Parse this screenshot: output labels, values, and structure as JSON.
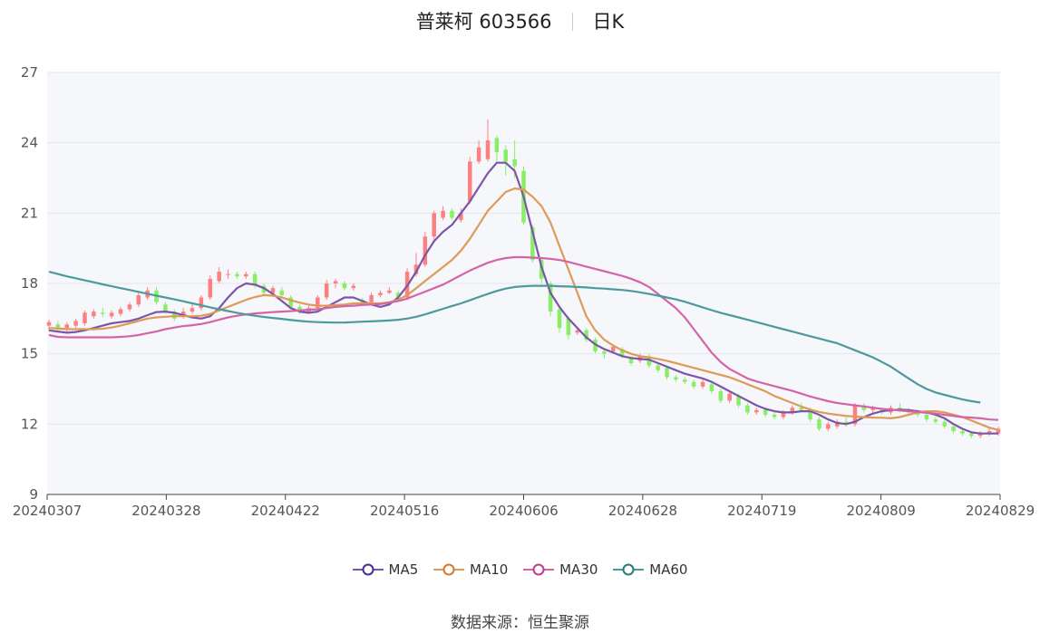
{
  "title": {
    "stock": "普莱柯 603566",
    "period": "日K"
  },
  "source": {
    "label": "数据来源：",
    "value": "恒生聚源"
  },
  "colors": {
    "up": "#fd8080",
    "down": "#88ee66",
    "MA5": "#7b56a8",
    "MA10": "#dd9b57",
    "MA30": "#d464a8",
    "MA60": "#4c9a9e",
    "plotBg": "#f6f7fb",
    "grid": "#e3e6ee"
  },
  "chart_data": {
    "type": "candlestick",
    "title": "普莱柯 603566 日K",
    "ylim": [
      9,
      27
    ],
    "yticks": [
      9,
      12,
      15,
      18,
      21,
      24,
      27
    ],
    "x_ticks": [
      "20240307",
      "20240328",
      "20240422",
      "20240516",
      "20240606",
      "20240628",
      "20240719",
      "20240809",
      "20240829"
    ],
    "legend": [
      "MA5",
      "MA10",
      "MA30",
      "MA60"
    ],
    "legend_position": "bottom",
    "grid": true,
    "candles": [
      [
        16.2,
        16.35,
        16.45,
        16.0
      ],
      [
        16.25,
        16.1,
        16.4,
        16.0
      ],
      [
        16.1,
        16.25,
        16.35,
        15.95
      ],
      [
        16.2,
        16.4,
        16.5,
        16.1
      ],
      [
        16.3,
        16.75,
        16.85,
        16.2
      ],
      [
        16.6,
        16.8,
        16.9,
        16.5
      ],
      [
        16.75,
        16.7,
        16.95,
        16.55
      ],
      [
        16.6,
        16.75,
        16.85,
        16.5
      ],
      [
        16.7,
        16.9,
        17.0,
        16.6
      ],
      [
        16.9,
        17.1,
        17.2,
        16.8
      ],
      [
        17.1,
        17.5,
        17.6,
        17.0
      ],
      [
        17.4,
        17.7,
        17.85,
        17.3
      ],
      [
        17.7,
        17.2,
        17.85,
        17.1
      ],
      [
        17.1,
        16.8,
        17.2,
        16.7
      ],
      [
        16.8,
        16.5,
        16.9,
        16.4
      ],
      [
        16.6,
        16.8,
        16.95,
        16.5
      ],
      [
        16.8,
        16.95,
        17.1,
        16.7
      ],
      [
        16.95,
        17.4,
        17.5,
        16.85
      ],
      [
        17.4,
        18.2,
        18.35,
        17.3
      ],
      [
        18.1,
        18.5,
        18.7,
        18.0
      ],
      [
        18.4,
        18.4,
        18.6,
        18.2
      ],
      [
        18.4,
        18.3,
        18.5,
        18.2
      ],
      [
        18.3,
        18.4,
        18.5,
        18.2
      ],
      [
        18.4,
        17.9,
        18.5,
        17.8
      ],
      [
        17.9,
        17.6,
        18.0,
        17.5
      ],
      [
        17.6,
        17.8,
        17.9,
        17.5
      ],
      [
        17.7,
        17.5,
        17.85,
        17.4
      ],
      [
        17.4,
        17.0,
        17.5,
        16.9
      ],
      [
        17.0,
        16.8,
        17.1,
        16.7
      ],
      [
        16.8,
        16.95,
        17.05,
        16.7
      ],
      [
        16.95,
        17.4,
        17.5,
        16.9
      ],
      [
        17.4,
        18.0,
        18.15,
        17.3
      ],
      [
        18.0,
        18.1,
        18.2,
        17.8
      ],
      [
        18.0,
        17.8,
        18.1,
        17.7
      ],
      [
        17.8,
        17.9,
        18.0,
        17.7
      ],
      [
        17.3,
        17.2,
        17.4,
        17.1
      ],
      [
        17.2,
        17.5,
        17.6,
        17.1
      ],
      [
        17.5,
        17.6,
        17.7,
        17.4
      ],
      [
        17.6,
        17.7,
        17.85,
        17.55
      ],
      [
        17.6,
        17.4,
        17.7,
        17.3
      ],
      [
        17.4,
        18.5,
        18.65,
        17.3
      ],
      [
        18.4,
        18.8,
        19.3,
        18.3
      ],
      [
        18.8,
        20.0,
        20.2,
        18.7
      ],
      [
        20.0,
        21.0,
        21.1,
        19.8
      ],
      [
        20.8,
        21.1,
        21.3,
        20.7
      ],
      [
        21.1,
        20.8,
        21.2,
        20.7
      ],
      [
        20.7,
        21.0,
        21.2,
        20.6
      ],
      [
        21.5,
        23.2,
        23.4,
        21.4
      ],
      [
        23.2,
        23.8,
        24.1,
        23.1
      ],
      [
        23.3,
        24.1,
        25.0,
        23.2
      ],
      [
        24.2,
        23.6,
        24.3,
        23.2
      ],
      [
        23.7,
        23.2,
        23.9,
        22.6
      ],
      [
        23.3,
        23.0,
        24.1,
        22.5
      ],
      [
        22.8,
        20.6,
        23.0,
        20.5
      ],
      [
        20.4,
        19.0,
        20.5,
        18.9
      ],
      [
        19.0,
        18.2,
        19.1,
        18.0
      ],
      [
        18.0,
        16.8,
        18.1,
        16.6
      ],
      [
        16.9,
        16.1,
        17.0,
        15.9
      ],
      [
        16.5,
        15.8,
        16.6,
        15.6
      ],
      [
        15.9,
        16.0,
        16.1,
        15.8
      ],
      [
        16.0,
        15.6,
        16.1,
        15.5
      ],
      [
        15.6,
        15.1,
        15.7,
        15.0
      ],
      [
        15.1,
        15.0,
        15.2,
        14.8
      ],
      [
        15.1,
        15.3,
        15.4,
        15.0
      ],
      [
        15.2,
        14.9,
        15.3,
        14.8
      ],
      [
        14.8,
        14.6,
        14.9,
        14.5
      ],
      [
        14.7,
        14.9,
        15.0,
        14.6
      ],
      [
        14.9,
        14.5,
        15.0,
        14.4
      ],
      [
        14.5,
        14.3,
        14.6,
        14.2
      ],
      [
        14.4,
        14.0,
        14.5,
        13.9
      ],
      [
        14.0,
        13.9,
        14.1,
        13.8
      ],
      [
        13.9,
        13.8,
        14.0,
        13.7
      ],
      [
        13.8,
        13.6,
        13.9,
        13.5
      ],
      [
        13.6,
        13.8,
        13.9,
        13.5
      ],
      [
        13.7,
        13.4,
        13.8,
        13.3
      ],
      [
        13.4,
        13.0,
        13.5,
        12.9
      ],
      [
        13.0,
        13.3,
        13.4,
        12.9
      ],
      [
        13.2,
        12.8,
        13.3,
        12.7
      ],
      [
        12.8,
        12.5,
        12.9,
        12.4
      ],
      [
        12.5,
        12.6,
        12.7,
        12.4
      ],
      [
        12.6,
        12.4,
        12.7,
        12.3
      ],
      [
        12.4,
        12.3,
        12.5,
        12.2
      ],
      [
        12.3,
        12.5,
        12.6,
        12.2
      ],
      [
        12.5,
        12.7,
        12.8,
        12.4
      ],
      [
        12.7,
        12.6,
        12.9,
        12.5
      ],
      [
        12.6,
        12.2,
        12.7,
        12.1
      ],
      [
        12.2,
        11.8,
        12.3,
        11.7
      ],
      [
        11.8,
        12.0,
        12.1,
        11.7
      ],
      [
        11.9,
        12.1,
        12.2,
        11.8
      ],
      [
        12.1,
        12.0,
        12.3,
        11.9
      ],
      [
        12.0,
        12.8,
        12.9,
        11.9
      ],
      [
        12.8,
        12.6,
        12.9,
        12.5
      ],
      [
        12.6,
        12.7,
        12.8,
        12.5
      ],
      [
        12.6,
        12.5,
        12.7,
        12.4
      ],
      [
        12.5,
        12.7,
        12.8,
        12.4
      ],
      [
        12.7,
        12.6,
        12.9,
        12.5
      ],
      [
        12.6,
        12.5,
        12.7,
        12.4
      ],
      [
        12.5,
        12.4,
        12.6,
        12.3
      ],
      [
        12.4,
        12.2,
        12.5,
        12.1
      ],
      [
        12.2,
        12.1,
        12.3,
        12.0
      ],
      [
        12.1,
        11.9,
        12.2,
        11.8
      ],
      [
        11.9,
        11.7,
        12.0,
        11.6
      ],
      [
        11.7,
        11.6,
        11.8,
        11.5
      ],
      [
        11.6,
        11.5,
        11.7,
        11.4
      ],
      [
        11.5,
        11.6,
        11.7,
        11.4
      ],
      [
        11.6,
        11.7,
        11.8,
        11.5
      ],
      [
        11.6,
        11.8,
        11.9,
        11.5
      ]
    ],
    "series": [
      {
        "name": "MA5",
        "values": [
          16.0,
          15.95,
          15.9,
          15.93,
          16.0,
          16.1,
          16.2,
          16.3,
          16.35,
          16.4,
          16.5,
          16.65,
          16.78,
          16.8,
          16.75,
          16.65,
          16.55,
          16.5,
          16.6,
          16.95,
          17.4,
          17.8,
          18.0,
          17.95,
          17.8,
          17.55,
          17.25,
          16.95,
          16.8,
          16.75,
          16.8,
          17.0,
          17.2,
          17.4,
          17.4,
          17.25,
          17.1,
          17.0,
          17.1,
          17.4,
          17.9,
          18.5,
          19.2,
          19.8,
          20.2,
          20.5,
          21.0,
          21.5,
          22.1,
          22.7,
          23.15,
          23.15,
          22.8,
          21.7,
          20.2,
          18.7,
          17.6,
          17.0,
          16.5,
          16.1,
          15.7,
          15.4,
          15.2,
          15.05,
          14.9,
          14.82,
          14.78,
          14.75,
          14.6,
          14.45,
          14.3,
          14.15,
          14.05,
          13.95,
          13.8,
          13.6,
          13.4,
          13.2,
          13.0,
          12.8,
          12.65,
          12.55,
          12.5,
          12.5,
          12.55,
          12.55,
          12.4,
          12.2,
          12.05,
          12.0,
          12.1,
          12.3,
          12.45,
          12.55,
          12.6,
          12.62,
          12.6,
          12.55,
          12.5,
          12.4,
          12.25,
          12.0,
          11.8,
          11.65,
          11.6,
          11.6,
          11.6
        ]
      },
      {
        "name": "MA10",
        "values": [
          16.1,
          16.08,
          16.05,
          16.05,
          16.05,
          16.05,
          16.07,
          16.12,
          16.2,
          16.3,
          16.4,
          16.5,
          16.55,
          16.58,
          16.6,
          16.6,
          16.6,
          16.62,
          16.7,
          16.85,
          17.0,
          17.15,
          17.3,
          17.42,
          17.5,
          17.48,
          17.4,
          17.28,
          17.18,
          17.1,
          17.05,
          17.05,
          17.08,
          17.1,
          17.15,
          17.15,
          17.15,
          17.15,
          17.2,
          17.3,
          17.5,
          17.8,
          18.1,
          18.4,
          18.7,
          19.0,
          19.4,
          19.9,
          20.5,
          21.1,
          21.5,
          21.9,
          22.05,
          22.0,
          21.7,
          21.3,
          20.6,
          19.6,
          18.6,
          17.6,
          16.6,
          16.0,
          15.6,
          15.35,
          15.15,
          15.0,
          14.9,
          14.85,
          14.78,
          14.7,
          14.6,
          14.5,
          14.4,
          14.3,
          14.2,
          14.1,
          14.0,
          13.85,
          13.7,
          13.55,
          13.4,
          13.2,
          13.05,
          12.9,
          12.75,
          12.62,
          12.52,
          12.45,
          12.4,
          12.35,
          12.32,
          12.3,
          12.28,
          12.27,
          12.25,
          12.3,
          12.4,
          12.5,
          12.55,
          12.55,
          12.5,
          12.4,
          12.3,
          12.15,
          12.0,
          11.85,
          11.75
        ]
      },
      {
        "name": "MA30",
        "values": [
          15.8,
          15.72,
          15.7,
          15.7,
          15.7,
          15.7,
          15.7,
          15.7,
          15.72,
          15.75,
          15.8,
          15.88,
          15.95,
          16.05,
          16.12,
          16.18,
          16.22,
          16.27,
          16.35,
          16.45,
          16.55,
          16.62,
          16.68,
          16.72,
          16.75,
          16.78,
          16.8,
          16.82,
          16.85,
          16.88,
          16.9,
          16.95,
          17.0,
          17.03,
          17.05,
          17.08,
          17.1,
          17.12,
          17.18,
          17.25,
          17.35,
          17.5,
          17.65,
          17.8,
          17.95,
          18.15,
          18.35,
          18.55,
          18.72,
          18.88,
          19.0,
          19.08,
          19.12,
          19.12,
          19.1,
          19.08,
          19.05,
          19.0,
          18.92,
          18.82,
          18.72,
          18.62,
          18.52,
          18.42,
          18.32,
          18.2,
          18.05,
          17.85,
          17.55,
          17.25,
          16.95,
          16.55,
          16.05,
          15.55,
          15.05,
          14.65,
          14.35,
          14.15,
          13.95,
          13.82,
          13.72,
          13.62,
          13.52,
          13.42,
          13.3,
          13.18,
          13.08,
          12.98,
          12.9,
          12.85,
          12.8,
          12.75,
          12.7,
          12.65,
          12.62,
          12.58,
          12.55,
          12.52,
          12.48,
          12.45,
          12.4,
          12.35,
          12.3,
          12.28,
          12.25,
          12.2,
          12.18
        ]
      },
      {
        "name": "MA60",
        "values": [
          18.5,
          18.4,
          18.3,
          18.22,
          18.13,
          18.05,
          17.96,
          17.88,
          17.8,
          17.72,
          17.64,
          17.56,
          17.48,
          17.4,
          17.32,
          17.24,
          17.15,
          17.07,
          16.98,
          16.9,
          16.82,
          16.75,
          16.68,
          16.62,
          16.57,
          16.53,
          16.49,
          16.44,
          16.4,
          16.37,
          16.35,
          16.34,
          16.33,
          16.33,
          16.35,
          16.37,
          16.38,
          16.4,
          16.42,
          16.45,
          16.5,
          16.58,
          16.68,
          16.8,
          16.92,
          17.04,
          17.15,
          17.28,
          17.42,
          17.55,
          17.68,
          17.78,
          17.85,
          17.88,
          17.9,
          17.9,
          17.9,
          17.88,
          17.87,
          17.85,
          17.83,
          17.8,
          17.78,
          17.75,
          17.72,
          17.68,
          17.62,
          17.55,
          17.48,
          17.4,
          17.32,
          17.22,
          17.1,
          16.98,
          16.86,
          16.75,
          16.65,
          16.55,
          16.45,
          16.35,
          16.25,
          16.15,
          16.05,
          15.95,
          15.85,
          15.75,
          15.65,
          15.55,
          15.45,
          15.3,
          15.15,
          15.0,
          14.85,
          14.65,
          14.45,
          14.2,
          13.95,
          13.7,
          13.5,
          13.35,
          13.25,
          13.15,
          13.05,
          12.98,
          12.92
        ]
      }
    ]
  }
}
